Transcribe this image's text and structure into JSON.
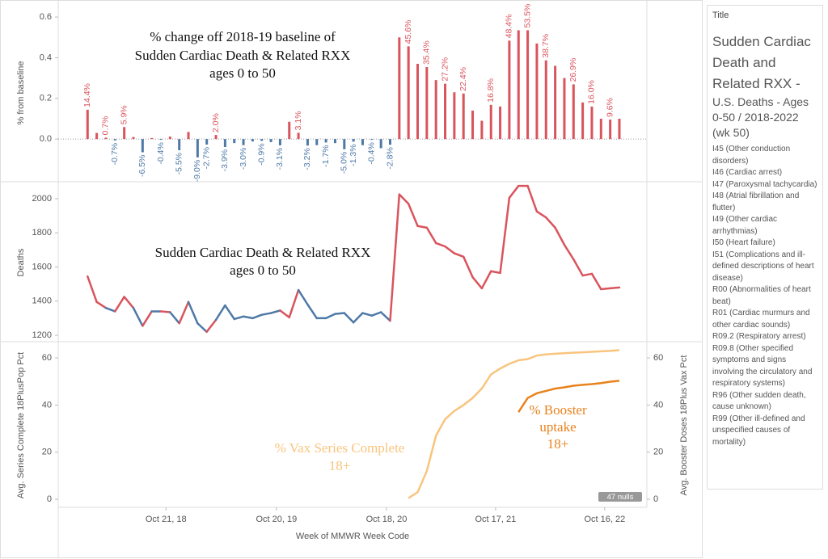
{
  "x_axis": {
    "title": "Week of MMWR Week Code",
    "categories": [
      null,
      null,
      null,
      null,
      null,
      null,
      null,
      null,
      null,
      null,
      null,
      null,
      null,
      null,
      null,
      null,
      null,
      null,
      null,
      null,
      null,
      null,
      null,
      null,
      null,
      null,
      null,
      null,
      null,
      null,
      null,
      null,
      null,
      null,
      null,
      null,
      null,
      null,
      null,
      null,
      null,
      null,
      null,
      null,
      null,
      null,
      null,
      null,
      null,
      null,
      null,
      null,
      null,
      null,
      null,
      null,
      null,
      null,
      null
    ],
    "xlim": [
      -3.2,
      61
    ],
    "xticks": [
      {
        "value": 8.55,
        "label": "Oct 21, 18"
      },
      {
        "value": 20.6,
        "label": "Oct 20, 19"
      },
      {
        "value": 32.6,
        "label": "Oct 18, 20"
      },
      {
        "value": 44.5,
        "label": "Oct 17, 21"
      },
      {
        "value": 56.4,
        "label": "Oct 16, 22"
      }
    ]
  },
  "chart_data": [
    {
      "type": "bar",
      "ylabel": "% from baseline",
      "annotation": [
        "% change off 2018-19 baseline of",
        "Sudden Cardiac Death & Related RXX",
        "ages 0 to 50"
      ],
      "values": [
        0.144,
        0.03,
        0.007,
        -0.007,
        0.059,
        0.01,
        -0.065,
        0.005,
        -0.004,
        0.012,
        -0.055,
        0.035,
        -0.09,
        -0.027,
        0.02,
        -0.039,
        -0.02,
        -0.03,
        -0.012,
        -0.009,
        -0.015,
        -0.031,
        0.085,
        0.031,
        -0.032,
        -0.03,
        -0.017,
        -0.02,
        -0.05,
        -0.013,
        -0.03,
        -0.004,
        -0.045,
        -0.028,
        0.5,
        0.456,
        0.37,
        0.354,
        0.29,
        0.272,
        0.23,
        0.224,
        0.14,
        0.09,
        0.168,
        0.16,
        0.484,
        0.535,
        0.535,
        0.47,
        0.387,
        0.36,
        0.3,
        0.269,
        0.18,
        0.16,
        0.1,
        0.096,
        0.1
      ],
      "value_labels": [
        "14.4%",
        null,
        "0.7%",
        "-0.7%",
        "5.9%",
        null,
        "-6.5%",
        null,
        "-0.4%",
        null,
        "-5.5%",
        null,
        "-9.0%",
        "-2.7%",
        "2.0%",
        "-3.9%",
        null,
        "-3.0%",
        null,
        "-0.9%",
        null,
        "-3.1%",
        null,
        "3.1%",
        "-3.2%",
        null,
        "-1.7%",
        null,
        "-5.0%",
        "-1.3%",
        null,
        "-0.4%",
        null,
        "-2.8%",
        null,
        "45.6%",
        null,
        "35.4%",
        null,
        "27.2%",
        null,
        "22.4%",
        null,
        null,
        "16.8%",
        null,
        "48.4%",
        null,
        "53.5%",
        null,
        "38.7%",
        null,
        null,
        "26.9%",
        null,
        "16.0%",
        null,
        "9.6%",
        null
      ],
      "colors": {
        "positive": "#d9545d",
        "negative": "#4e79a7"
      },
      "ylim": [
        -0.21,
        0.664
      ],
      "yticks": [
        {
          "value": 0,
          "label": "0.0"
        },
        0.2,
        0.4,
        0.6
      ],
      "zero_line": true
    },
    {
      "type": "line",
      "ylabel": "Deaths",
      "annotation": [
        "Sudden Cardiac Death & Related RXX",
        "ages 0 to 50"
      ],
      "values": [
        1545,
        1395,
        1360,
        1340,
        1425,
        1360,
        1255,
        1340,
        1340,
        1335,
        1270,
        1395,
        1270,
        1220,
        1290,
        1375,
        1295,
        1310,
        1300,
        1320,
        1330,
        1345,
        1305,
        1465,
        1380,
        1300,
        1300,
        1325,
        1330,
        1275,
        1330,
        1315,
        1335,
        1285,
        2025,
        1970,
        1840,
        1830,
        1740,
        1720,
        1680,
        1660,
        1540,
        1475,
        1575,
        1565,
        2005,
        2075,
        2075,
        1925,
        1890,
        1830,
        1730,
        1645,
        1550,
        1560,
        1470,
        1475,
        1480
      ],
      "colors": {
        "positive": "#d9545d",
        "negative": "#4e79a7"
      },
      "ylim": [
        1167,
        2085
      ],
      "yticks": [
        1200,
        1400,
        1600,
        1800,
        2000
      ]
    },
    {
      "type": "dual_line",
      "ylabel": "Avg. Series Complete 18PlusPop Pct",
      "y2label": "Avg. Booster Doses 18Plus Vax Pct",
      "null_indicator": "47 nulls",
      "series": [
        {
          "name_lines": [
            "% Vax Series Complete",
            "18+"
          ],
          "color": "#f9c47d",
          "axis": "y",
          "values": [
            null,
            null,
            null,
            null,
            null,
            null,
            null,
            null,
            null,
            null,
            null,
            null,
            null,
            null,
            null,
            null,
            null,
            null,
            null,
            null,
            null,
            null,
            null,
            null,
            null,
            null,
            null,
            null,
            null,
            null,
            null,
            null,
            null,
            null,
            null,
            0.5,
            3,
            12,
            27,
            34,
            37.5,
            40,
            43,
            47,
            53,
            55.5,
            57.5,
            59,
            59.5,
            61,
            61.5,
            61.8,
            62,
            62.2,
            62.4,
            62.6,
            62.8,
            63,
            63.3
          ]
        },
        {
          "name_lines": [
            "% Booster",
            "uptake",
            "18+"
          ],
          "color": "#e8821c",
          "axis": "y2",
          "values": [
            null,
            null,
            null,
            null,
            null,
            null,
            null,
            null,
            null,
            null,
            null,
            null,
            null,
            null,
            null,
            null,
            null,
            null,
            null,
            null,
            null,
            null,
            null,
            null,
            null,
            null,
            null,
            null,
            null,
            null,
            null,
            null,
            null,
            null,
            null,
            null,
            null,
            null,
            null,
            null,
            null,
            null,
            null,
            null,
            null,
            null,
            null,
            37,
            43,
            45,
            46,
            47,
            47.5,
            48.2,
            48.6,
            48.9,
            49.3,
            49.9,
            50.3
          ]
        }
      ],
      "ylim": [
        -3.4,
        66.2
      ],
      "yticks": [
        0,
        20,
        40,
        60
      ],
      "y2lim": [
        -3.4,
        66.2
      ],
      "y2ticks": [
        0,
        20,
        40,
        60
      ]
    }
  ],
  "side_panel": {
    "header": "Title",
    "title": "Sudden Cardiac Death and Related RXX -",
    "subtitle": "U.S. Deaths - Ages 0-50 / 2018-2022 (wk 50)",
    "items": [
      "I45 (Other conduction disorders)",
      "I46 (Cardiac arrest)",
      "I47 (Paroxysmal tachycardia)",
      "I48 (Atrial fibrillation and flutter)",
      "I49 (Other cardiac arrhythmias)",
      "I50 (Heart failure)",
      "I51 (Complications and ill-defined descriptions of heart disease)",
      "R00 (Abnormalities of heart beat)",
      "R01 (Cardiac murmurs and other cardiac sounds)",
      "R09.2 (Respiratory arrest)",
      "R09.8 (Other specified symptoms and signs involving the circulatory and respiratory systems)",
      "R96 (Other sudden death, cause unknown)",
      "R99 (Other ill-defined and unspecified causes of mortality)"
    ]
  }
}
